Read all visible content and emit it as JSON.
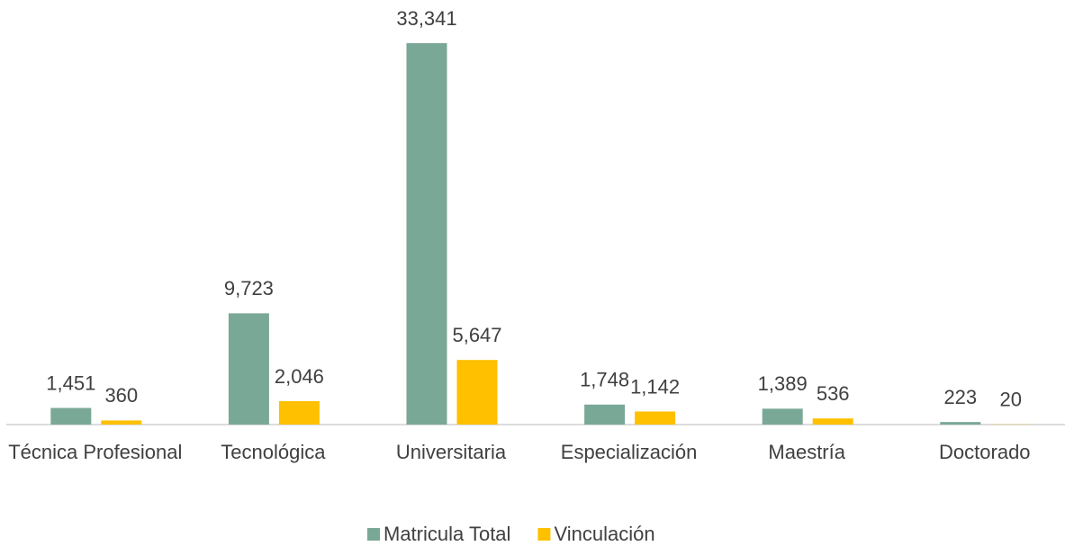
{
  "chart_data": {
    "type": "bar",
    "categories": [
      "Técnica Profesional",
      "Tecnológica",
      "Universitaria",
      "Especialización",
      "Maestría",
      "Doctorado"
    ],
    "series": [
      {
        "name": "Matricula Total",
        "color": "#7aa896",
        "values": [
          1451,
          9723,
          33341,
          1748,
          1389,
          223
        ],
        "value_labels": [
          "1,451",
          "9,723",
          "33,341",
          "1,748",
          "1,389",
          "223"
        ]
      },
      {
        "name": "Vinculación",
        "color": "#ffc000",
        "values": [
          360,
          2046,
          5647,
          1142,
          536,
          20
        ],
        "value_labels": [
          "360",
          "2,046",
          "5,647",
          "1,142",
          "536",
          "20"
        ]
      }
    ],
    "legend": "bottom"
  }
}
